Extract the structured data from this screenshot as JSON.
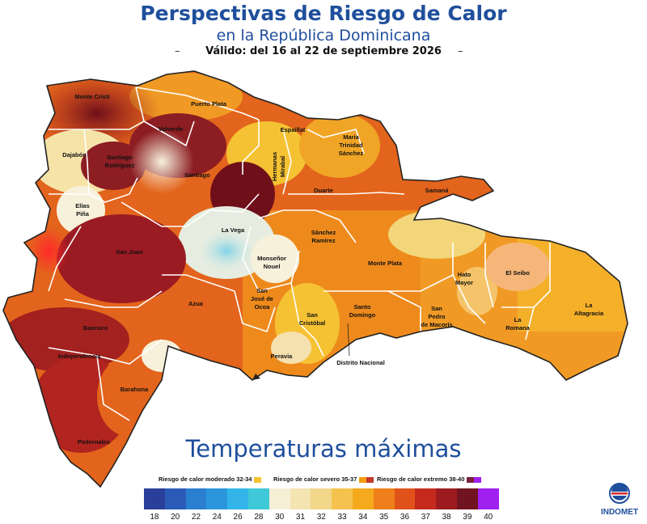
{
  "header": {
    "title": "Perspectivas de Riesgo de Calor",
    "subtitle": "en la República Dominicana",
    "validity": "Válido: del 16  al 22 de septiembre 2026",
    "dash": "–"
  },
  "map": {
    "provinces": [
      {
        "name": "Monte Cristi",
        "risk": "extremo"
      },
      {
        "name": "Puerto Plata",
        "risk": "severo"
      },
      {
        "name": "Valverde",
        "risk": "extremo"
      },
      {
        "name": "Espaillat",
        "risk": "moderado"
      },
      {
        "name": "María Trinidad Sánchez",
        "risk": "severo"
      },
      {
        "name": "Dajabón",
        "risk": "extremo"
      },
      {
        "name": "Santiago Rodríguez",
        "risk": "extremo"
      },
      {
        "name": "Santiago",
        "risk": "extremo"
      },
      {
        "name": "Hermanas Mirabal",
        "risk": "moderado"
      },
      {
        "name": "Duarte",
        "risk": "severo"
      },
      {
        "name": "Samaná",
        "risk": "severo"
      },
      {
        "name": "Elías Piña",
        "risk": "none"
      },
      {
        "name": "La Vega",
        "risk": "none"
      },
      {
        "name": "Sánchez Ramírez",
        "risk": "severo"
      },
      {
        "name": "San Juan",
        "risk": "extremo"
      },
      {
        "name": "Monseñor Nouel",
        "risk": "none"
      },
      {
        "name": "Monte Plata",
        "risk": "severo"
      },
      {
        "name": "Hato Mayor",
        "risk": "severo"
      },
      {
        "name": "El Seibo",
        "risk": "severo"
      },
      {
        "name": "Azua",
        "risk": "severo"
      },
      {
        "name": "San José de Ocoa",
        "risk": "severo"
      },
      {
        "name": "San Cristóbal",
        "risk": "moderado"
      },
      {
        "name": "Santo Domingo",
        "risk": "severo"
      },
      {
        "name": "San Pedro de Macorís",
        "risk": "severo"
      },
      {
        "name": "La Altagracia",
        "risk": "severo"
      },
      {
        "name": "La Romana",
        "risk": "severo"
      },
      {
        "name": "Baoruco",
        "risk": "extremo"
      },
      {
        "name": "Independencia",
        "risk": "extremo"
      },
      {
        "name": "Peravia",
        "risk": "severo"
      },
      {
        "name": "Distrito Nacional",
        "risk": "moderado"
      },
      {
        "name": "Barahona",
        "risk": "severo"
      },
      {
        "name": "Pedernales",
        "risk": "extremo"
      }
    ],
    "labels": {
      "monte_cristi": "Monte Cristi",
      "puerto_plata": "Puerto Plata",
      "valverde": "Valverde",
      "espaillat": "Espaillat",
      "mts_1": "María",
      "mts_2": "Trinidad",
      "mts_3": "Sánchez",
      "dajabon": "Dajabón",
      "sr_1": "Santiago",
      "sr_2": "Rodríguez",
      "santiago": "Santiago",
      "hm_1": "Hermanas",
      "hm_2": "Mirabal",
      "duarte": "Duarte",
      "samana": "Samaná",
      "ep_1": "Elías",
      "ep_2": "Piña",
      "la_vega": "La Vega",
      "sanr_1": "Sánchez",
      "sanr_2": "Ramírez",
      "san_juan": "San Juan",
      "mn_1": "Monseñor",
      "mn_2": "Nouel",
      "monte_plata": "Monte Plata",
      "hato_1": "Hato",
      "hato_2": "Mayor",
      "el_seibo": "El Seibo",
      "azua": "Azua",
      "sjo_1": "San",
      "sjo_2": "José de",
      "sjo_3": "Ocoa",
      "sc_1": "San",
      "sc_2": "Cristóbal",
      "sd_1": "Santo",
      "sd_2": "Domingo",
      "spm_1": "San",
      "spm_2": "Pedro",
      "spm_3": "de Macorís",
      "la_1": "La",
      "la_2": "Altagracia",
      "lr_1": "La",
      "lr_2": "Romana",
      "baoruco": "Baoruco",
      "independencia": "Independencia",
      "peravia": "Peravia",
      "distrito": "Distrito Nacional",
      "barahona": "Barahona",
      "pedernales": "Pedernales"
    }
  },
  "section_title": "Temperaturas máximas",
  "legend": {
    "moderado": {
      "label": "Riesgo de calor moderado 32-34",
      "color": "#f5c233"
    },
    "severo": {
      "label": "Riesgo de calor severo 35-37",
      "colors": [
        "#f39c12",
        "#c0392b"
      ]
    },
    "extremo": {
      "label": "Riesgo de calor extremo 38-40",
      "colors": [
        "#7a1f3d",
        "#a020f0"
      ]
    }
  },
  "scale": {
    "ticks": [
      "18",
      "20",
      "22",
      "24",
      "26",
      "28",
      "30",
      "31",
      "32",
      "33",
      "34",
      "35",
      "36",
      "37",
      "38",
      "39",
      "40"
    ],
    "colors": [
      "#2a3f9a",
      "#2b5bb8",
      "#2a7fd0",
      "#2b96dc",
      "#33b4e8",
      "#3fc8d8",
      "#f5efd6",
      "#f3e4b1",
      "#f2d78a",
      "#f5c24d",
      "#f5a91c",
      "#ef7f1a",
      "#e0521a",
      "#c62a1c",
      "#9b1b1e",
      "#6f1420",
      "#a020f0"
    ]
  },
  "logo": {
    "text": "INDOMET"
  }
}
